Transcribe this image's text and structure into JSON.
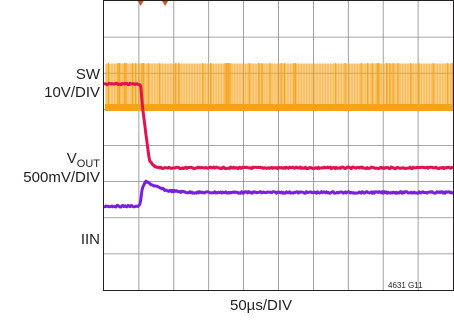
{
  "chart_data": {
    "type": "line",
    "title": "",
    "xlabel": "50µs/DIV",
    "figure_id": "4631 G11",
    "grid": true,
    "grid_divisions": {
      "x": 10,
      "y": 8
    },
    "x_unit_per_div": "50µs",
    "trigger_time_div": 1.05,
    "traces": [
      {
        "name": "SW",
        "scale": "10V/DIV",
        "color": "#f5a31a",
        "description_levels_div": {
          "high": 1.45,
          "low": 1.0
        },
        "waveform": "switching node, dense pulses throughout; pulse bursts sparser after trigger"
      },
      {
        "name": "VOUT",
        "name_main": "V",
        "name_sub": "OUT",
        "scale": "500mV/DIV",
        "color": "#e2124f",
        "points_div": [
          [
            0.0,
            2.3
          ],
          [
            1.0,
            2.3
          ],
          [
            1.05,
            2.3
          ],
          [
            1.1,
            2.9
          ],
          [
            1.2,
            3.7
          ],
          [
            1.3,
            4.4
          ],
          [
            1.4,
            4.55
          ],
          [
            1.6,
            4.62
          ],
          [
            2.0,
            4.62
          ],
          [
            10.0,
            4.62
          ]
        ]
      },
      {
        "name": "IIN",
        "scale": "",
        "color": "#7a1fe0",
        "points_div": [
          [
            0.0,
            5.68
          ],
          [
            1.0,
            5.68
          ],
          [
            1.05,
            5.55
          ],
          [
            1.1,
            5.15
          ],
          [
            1.2,
            5.0
          ],
          [
            1.4,
            5.1
          ],
          [
            1.8,
            5.25
          ],
          [
            2.5,
            5.3
          ],
          [
            10.0,
            5.3
          ]
        ]
      }
    ],
    "trigger_markers": [
      {
        "time_div": 1.05,
        "color": "#d4541f"
      },
      {
        "time_div": 1.75,
        "color": "#d4541f"
      }
    ]
  },
  "labels": {
    "sw_name": "SW",
    "sw_scale": "10V/DIV",
    "vout_main": "V",
    "vout_sub": "OUT",
    "vout_scale": "500mV/DIV",
    "iin_name": "IIN",
    "x_label": "50µs/DIV",
    "fig_id": "4631 G11"
  }
}
